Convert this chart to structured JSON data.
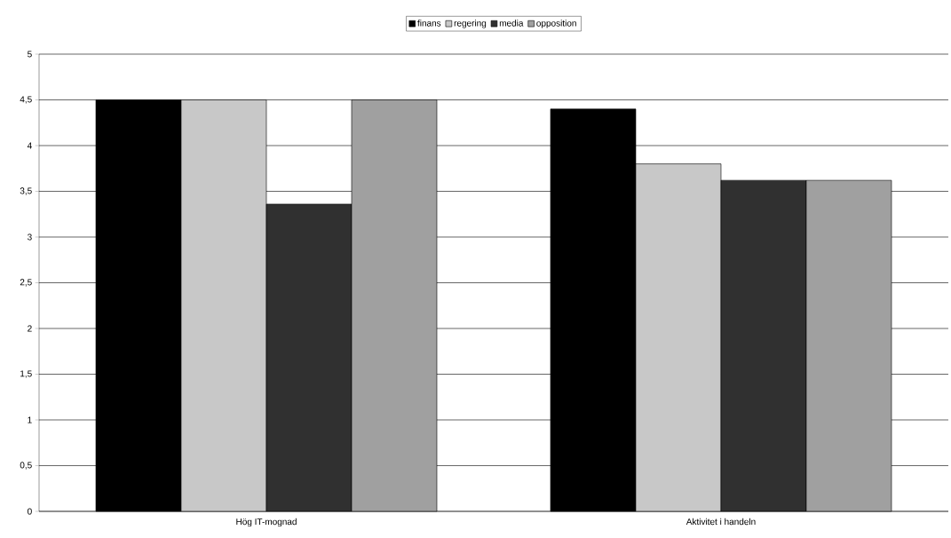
{
  "chart_data": {
    "type": "bar",
    "categories": [
      "Hög IT-mognad",
      "Aktivitet i handeln"
    ],
    "series": [
      {
        "name": "finans",
        "color": "#000000",
        "values": [
          4.5,
          4.4
        ]
      },
      {
        "name": "regering",
        "color": "#c8c8c8",
        "values": [
          4.5,
          3.8
        ]
      },
      {
        "name": "media",
        "color": "#303030",
        "values": [
          3.36,
          3.62
        ]
      },
      {
        "name": "opposition",
        "color": "#a0a0a0",
        "values": [
          4.5,
          3.62
        ]
      }
    ],
    "ylim": [
      0,
      5
    ],
    "yticks": [
      0,
      {
        "value": 0.5,
        "label": "0,5"
      },
      1,
      {
        "value": 1.5,
        "label": "1,5"
      },
      2,
      {
        "value": 2.5,
        "label": "2,5"
      },
      3,
      {
        "value": 3.5,
        "label": "3,5"
      },
      4,
      {
        "value": 4.5,
        "label": "4,5"
      },
      5
    ],
    "grid": "y",
    "legend": "top"
  }
}
